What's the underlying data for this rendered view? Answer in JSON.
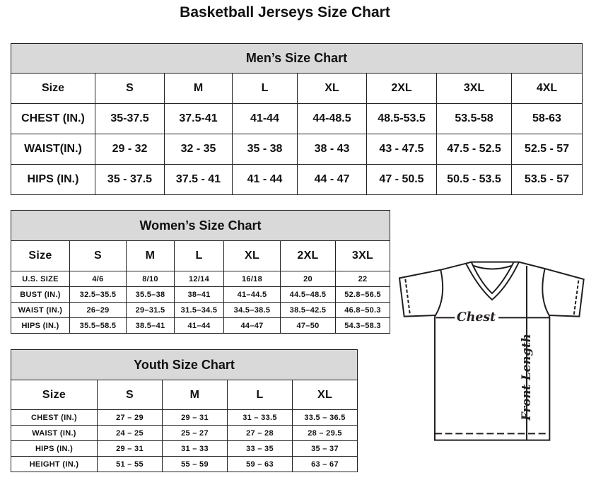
{
  "title": "Basketball Jerseys Size Chart",
  "men": {
    "heading": "Men’s Size Chart",
    "rows": [
      [
        "Size",
        "S",
        "M",
        "L",
        "XL",
        "2XL",
        "3XL",
        "4XL"
      ],
      [
        "CHEST (IN.)",
        "35-37.5",
        "37.5-41",
        "41-44",
        "44-48.5",
        "48.5-53.5",
        "53.5-58",
        "58-63"
      ],
      [
        "WAIST(IN.)",
        "29 - 32",
        "32 - 35",
        "35 - 38",
        "38 - 43",
        "43 - 47.5",
        "47.5 - 52.5",
        "52.5 - 57"
      ],
      [
        "HIPS (IN.)",
        "35 - 37.5",
        "37.5 - 41",
        "41 - 44",
        "44 - 47",
        "47 - 50.5",
        "50.5 - 53.5",
        "53.5 - 57"
      ]
    ]
  },
  "women": {
    "heading": "Women’s Size Chart",
    "rows": [
      [
        "Size",
        "S",
        "M",
        "L",
        "XL",
        "2XL",
        "3XL"
      ],
      [
        "U.S. SIZE",
        "4/6",
        "8/10",
        "12/14",
        "16/18",
        "20",
        "22"
      ],
      [
        "BUST (IN.)",
        "32.5–35.5",
        "35.5–38",
        "38–41",
        "41–44.5",
        "44.5–48.5",
        "52.8–56.5"
      ],
      [
        "WAIST (IN.)",
        "26–29",
        "29–31.5",
        "31.5–34.5",
        "34.5–38.5",
        "38.5–42.5",
        "46.8–50.3"
      ],
      [
        "HIPS (IN.)",
        "35.5–58.5",
        "38.5–41",
        "41–44",
        "44–47",
        "47–50",
        "54.3–58.3"
      ]
    ]
  },
  "youth": {
    "heading": "Youth Size Chart",
    "rows": [
      [
        "Size",
        "S",
        "M",
        "L",
        "XL"
      ],
      [
        "CHEST (IN.)",
        "27 – 29",
        "29 – 31",
        "31 – 33.5",
        "33.5 – 36.5"
      ],
      [
        "WAIST (IN.)",
        "24 – 25",
        "25 – 27",
        "27 – 28",
        "28 – 29.5"
      ],
      [
        "HIPS (IN.)",
        "29 – 31",
        "31 – 33",
        "33 – 35",
        "35 – 37"
      ],
      [
        "HEIGHT (IN.)",
        "51 – 55",
        "55 – 59",
        "59 – 63",
        "63 – 67"
      ]
    ]
  },
  "diagram": {
    "chest_label": "Chest",
    "length_label": "Front Length"
  }
}
